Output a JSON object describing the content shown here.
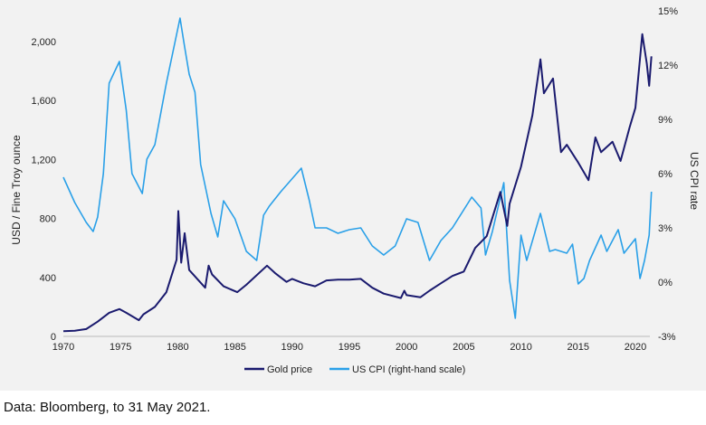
{
  "chart_data": {
    "type": "line",
    "title": "",
    "xlabel": "",
    "ylabel": "USD / Fine Troy ounce",
    "ylabel_right": "US CPI rate",
    "xlim": [
      1970,
      2021.5
    ],
    "ylim": [
      0,
      2200
    ],
    "ylim_right": [
      -3,
      15
    ],
    "x_ticks": [
      "1970",
      "1975",
      "1980",
      "1985",
      "1990",
      "1995",
      "2000",
      "2005",
      "2010",
      "2015",
      "2020"
    ],
    "y_ticks": [
      "0",
      "400",
      "800",
      "1,200",
      "1,600",
      "2,000"
    ],
    "y_ticks_right": [
      "-3%",
      "0%",
      "3%",
      "6%",
      "9%",
      "12%",
      "15%"
    ],
    "grid": false,
    "legend": "bottom",
    "colors": {
      "gold": "#1a1a6e",
      "cpi": "#2aa0e8"
    },
    "series": [
      {
        "name": "Gold price",
        "axis": "left",
        "x": [
          1970,
          1971,
          1972,
          1973,
          1974,
          1974.9,
          1975.5,
          1976.6,
          1977,
          1978,
          1979,
          1979.9,
          1980.05,
          1980.3,
          1980.6,
          1981,
          1982.4,
          1982.7,
          1983,
          1984,
          1985.2,
          1986,
          1987.8,
          1988.5,
          1989.5,
          1990,
          1991,
          1992,
          1993,
          1994,
          1995,
          1996,
          1997,
          1998,
          1999.5,
          1999.8,
          2000,
          2001.2,
          2002,
          2003,
          2004,
          2005,
          2006,
          2007,
          2008.2,
          2008.8,
          2009,
          2010,
          2011,
          2011.7,
          2012,
          2012.8,
          2013.5,
          2014,
          2015,
          2015.9,
          2016.5,
          2017,
          2018,
          2018.7,
          2019.5,
          2020,
          2020.6,
          2021,
          2021.2,
          2021.4
        ],
        "values": [
          35,
          38,
          50,
          100,
          160,
          185,
          160,
          110,
          150,
          200,
          300,
          520,
          850,
          500,
          700,
          450,
          330,
          480,
          420,
          340,
          300,
          350,
          480,
          430,
          370,
          390,
          360,
          340,
          380,
          385,
          385,
          390,
          330,
          290,
          260,
          310,
          280,
          265,
          310,
          360,
          410,
          440,
          600,
          680,
          980,
          750,
          900,
          1150,
          1500,
          1880,
          1650,
          1750,
          1250,
          1300,
          1180,
          1060,
          1350,
          1250,
          1320,
          1190,
          1420,
          1550,
          2050,
          1850,
          1700,
          1900
        ]
      },
      {
        "name": "US CPI (right-hand scale)",
        "axis": "right",
        "x": [
          1970,
          1971,
          1972,
          1972.6,
          1973,
          1973.5,
          1974,
          1974.9,
          1975.5,
          1976,
          1976.9,
          1977.3,
          1978,
          1979,
          1980.2,
          1980.6,
          1981,
          1981.5,
          1982,
          1982.9,
          1983.5,
          1984,
          1985,
          1986,
          1986.9,
          1987.5,
          1988,
          1989,
          1990.8,
          1991.5,
          1992,
          1993,
          1994,
          1995,
          1996,
          1997,
          1998,
          1999,
          2000,
          2001,
          2002,
          2003,
          2004,
          2005.7,
          2006.5,
          2006.9,
          2007.5,
          2008.5,
          2009,
          2009.5,
          2010,
          2010.5,
          2011.7,
          2012.5,
          2013,
          2014,
          2014.5,
          2015,
          2015.5,
          2016,
          2017,
          2017.5,
          2018.5,
          2019,
          2020,
          2020.4,
          2020.8,
          2021.2,
          2021.4
        ],
        "values": [
          5.8,
          4.4,
          3.3,
          2.8,
          3.6,
          6,
          11,
          12.2,
          9.5,
          6,
          4.9,
          6.8,
          7.6,
          11,
          14.6,
          13,
          11.5,
          10.5,
          6.5,
          3.8,
          2.5,
          4.5,
          3.5,
          1.7,
          1.2,
          3.7,
          4.2,
          5,
          6.3,
          4.5,
          3,
          3,
          2.7,
          2.9,
          3.0,
          2.0,
          1.5,
          2.0,
          3.5,
          3.3,
          1.2,
          2.3,
          3.0,
          4.7,
          4.1,
          1.5,
          2.8,
          5.5,
          0.1,
          -2.0,
          2.6,
          1.2,
          3.8,
          1.7,
          1.8,
          1.6,
          2.1,
          -0.1,
          0.2,
          1.2,
          2.6,
          1.7,
          2.9,
          1.6,
          2.4,
          0.2,
          1.2,
          2.6,
          5.0
        ]
      }
    ]
  },
  "footer": "Data: Bloomberg, to 31 May 2021."
}
